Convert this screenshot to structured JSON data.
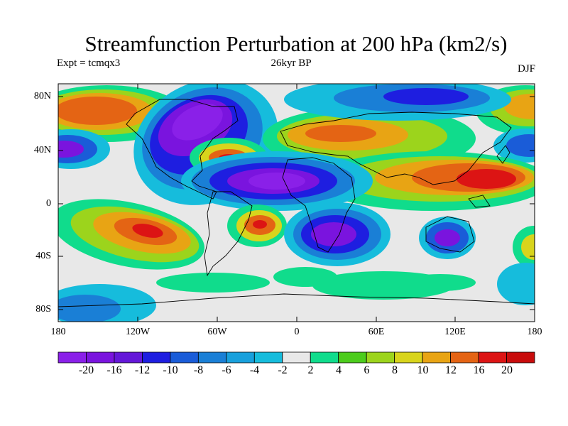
{
  "title": "Streamfunction Perturbation at 200 hPa (km2/s)",
  "experiment": "Expt = tcmqx3",
  "period": "26kyr BP",
  "season": "DJF",
  "axes": {
    "y_ticks": [
      "80N",
      "40N",
      "0",
      "40S",
      "80S"
    ],
    "x_ticks": [
      "180",
      "120W",
      "60W",
      "0",
      "60E",
      "120E",
      "180"
    ]
  },
  "colorbar": {
    "labels": [
      "-20",
      "-16",
      "-12",
      "-10",
      "-8",
      "-6",
      "-4",
      "-2",
      "2",
      "4",
      "6",
      "8",
      "10",
      "12",
      "16",
      "20"
    ],
    "colors": [
      "#8a20e8",
      "#7a14de",
      "#6417d8",
      "#1e1ee0",
      "#1a5cd8",
      "#1a7fd6",
      "#18a0dc",
      "#16bcdc",
      "#e8e8e8",
      "#10dc8c",
      "#4ccc1c",
      "#9cd41c",
      "#d8d41c",
      "#e8a414",
      "#e46414",
      "#dc1414",
      "#c80c0c"
    ]
  },
  "palette": {
    "n20": "#8a20e8",
    "n16": "#7a14de",
    "n12": "#6417d8",
    "n10": "#1e1ee0",
    "n8": "#1a5cd8",
    "n6": "#1a7fd6",
    "n4": "#18a0dc",
    "n2": "#16bcdc",
    "zero": "#e8e8e8",
    "p2": "#10dc8c",
    "p4": "#4ccc1c",
    "p6": "#9cd41c",
    "p8": "#d8d41c",
    "p10": "#e8a414",
    "p12": "#e46414",
    "p16": "#dc1414",
    "p20": "#c80c0c"
  }
}
